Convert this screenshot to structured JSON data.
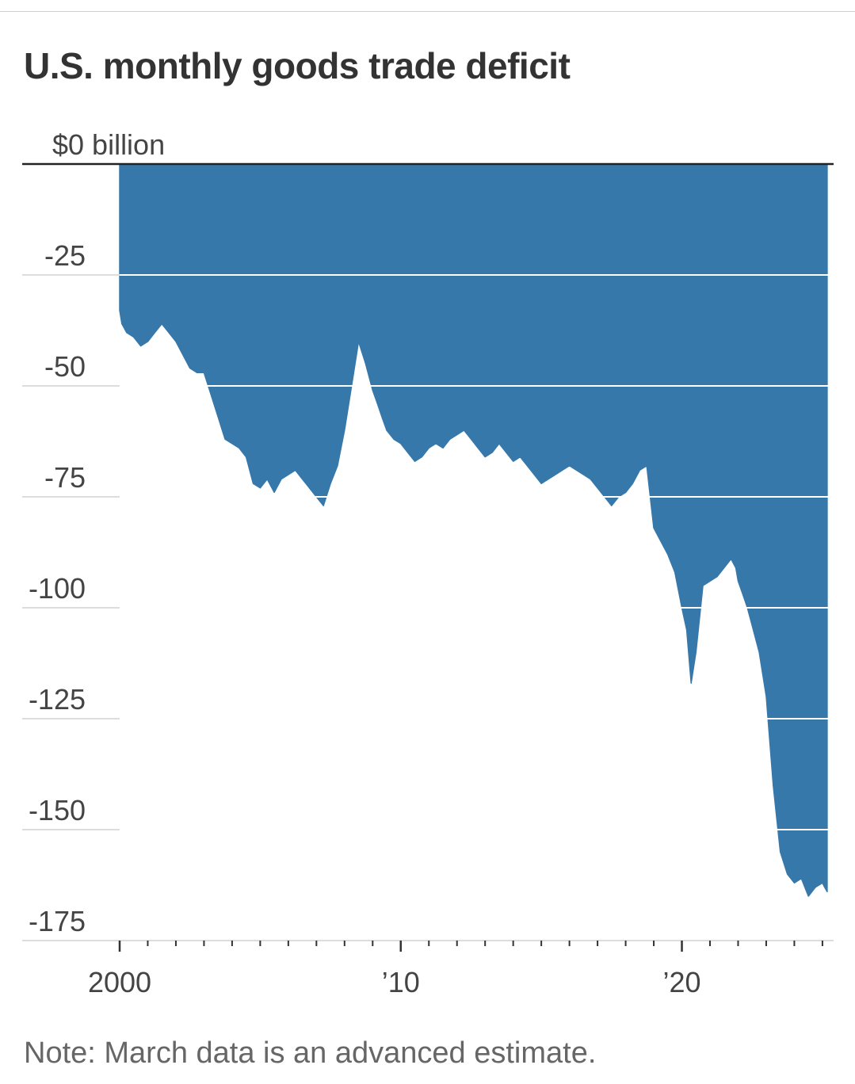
{
  "chart_data": {
    "type": "area",
    "title": "U.S. monthly goods trade deficit",
    "note": "Note: March data is an advanced estimate.",
    "ylim": [
      -180,
      0
    ],
    "y_ticks": [
      {
        "value": 0,
        "label": "$0 billion"
      },
      {
        "value": -25,
        "label": "-25"
      },
      {
        "value": -50,
        "label": "-50"
      },
      {
        "value": -75,
        "label": "-75"
      },
      {
        "value": -100,
        "label": "-100"
      },
      {
        "value": -125,
        "label": "-125"
      },
      {
        "value": -150,
        "label": "-150"
      },
      {
        "value": -175,
        "label": "-175"
      }
    ],
    "xlim": [
      2000.0,
      2025.2
    ],
    "x_ticks": [
      {
        "value": 2000,
        "label": "2000"
      },
      {
        "value": 2010,
        "label": "’10"
      },
      {
        "value": 2020,
        "label": "’20"
      }
    ],
    "grid": true,
    "colors": {
      "area": "#3778ab",
      "grid": "#dddddd",
      "baseline": "#222222"
    },
    "x": [
      2000.0,
      2000.08,
      2000.25,
      2000.5,
      2000.75,
      2001.0,
      2001.25,
      2001.5,
      2001.75,
      2002.0,
      2002.25,
      2002.5,
      2002.75,
      2003.0,
      2003.25,
      2003.5,
      2003.75,
      2004.0,
      2004.25,
      2004.5,
      2004.75,
      2005.0,
      2005.25,
      2005.5,
      2005.75,
      2006.0,
      2006.25,
      2006.5,
      2006.75,
      2007.0,
      2007.25,
      2007.5,
      2007.75,
      2008.0,
      2008.25,
      2008.5,
      2008.75,
      2009.0,
      2009.17,
      2009.33,
      2009.5,
      2009.75,
      2010.0,
      2010.25,
      2010.5,
      2010.75,
      2011.0,
      2011.25,
      2011.5,
      2011.75,
      2012.0,
      2012.25,
      2012.5,
      2012.75,
      2013.0,
      2013.25,
      2013.5,
      2013.75,
      2014.0,
      2014.25,
      2014.5,
      2014.75,
      2015.0,
      2015.25,
      2015.5,
      2015.75,
      2016.0,
      2016.25,
      2016.5,
      2016.75,
      2017.0,
      2017.25,
      2017.5,
      2017.75,
      2018.0,
      2018.25,
      2018.5,
      2018.75,
      2019.0,
      2019.25,
      2019.5,
      2019.75,
      2020.0,
      2020.17,
      2020.33,
      2020.5,
      2020.75,
      2021.0,
      2021.25,
      2021.5,
      2021.75,
      2021.92,
      2022.0,
      2022.17,
      2022.33,
      2022.5,
      2022.75,
      2023.0,
      2023.25,
      2023.5,
      2023.75,
      2024.0,
      2024.25,
      2024.5,
      2024.75,
      2025.0,
      2025.08,
      2025.17
    ],
    "values": [
      -33,
      -36,
      -38,
      -39,
      -41,
      -40,
      -38,
      -36,
      -38,
      -40,
      -43,
      -46,
      -47,
      -47,
      -52,
      -57,
      -62,
      -63,
      -64,
      -66,
      -72,
      -73,
      -71,
      -74,
      -71,
      -70,
      -69,
      -71,
      -73,
      -75,
      -77,
      -72,
      -68,
      -60,
      -50,
      -40,
      -45,
      -51,
      -54,
      -57,
      -60,
      -62,
      -63,
      -65,
      -67,
      -66,
      -64,
      -63,
      -64,
      -62,
      -61,
      -60,
      -62,
      -64,
      -66,
      -65,
      -63,
      -65,
      -67,
      -66,
      -68,
      -70,
      -72,
      -71,
      -70,
      -69,
      -68,
      -69,
      -70,
      -71,
      -73,
      -75,
      -77,
      -75,
      -74,
      -72,
      -69,
      -68,
      -82,
      -85,
      -88,
      -92,
      -100,
      -105,
      -117,
      -110,
      -95,
      -94,
      -93,
      -91,
      -89,
      -91,
      -94,
      -97,
      -100,
      -104,
      -110,
      -120,
      -140,
      -155,
      -160,
      -162,
      -161,
      -165,
      -163,
      -162,
      -163,
      -164
    ]
  }
}
